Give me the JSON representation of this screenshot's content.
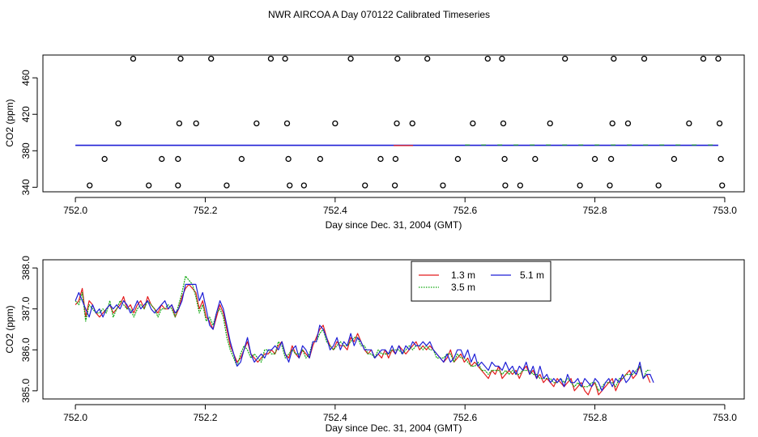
{
  "page_title": "NWR AIRCOA A  Day 070122  Calibrated Timeseries",
  "colors": {
    "red": "#e41a1c",
    "green": "#11a811",
    "blue": "#1f1fd6",
    "axis": "#000000"
  },
  "chart_data": [
    {
      "type": "scatter+line",
      "xlabel": "Day since Dec. 31, 2004 (GMT)",
      "ylabel": "CO2 (ppm)",
      "xlim": [
        751.95,
        753.03
      ],
      "ylim": [
        335,
        485
      ],
      "xticks": [
        752.0,
        752.2,
        752.4,
        752.6,
        752.8,
        753.0
      ],
      "xtick_labels": [
        "752.0",
        "752.2",
        "752.4",
        "752.6",
        "752.8",
        "753.0"
      ],
      "yticks": [
        340,
        380,
        420,
        460
      ],
      "ytick_labels": [
        "340",
        "380",
        "420",
        "460"
      ],
      "line": {
        "x_start": 752.0,
        "x_end": 752.99,
        "y": 386
      },
      "points": [
        {
          "x": 752.022,
          "y": 342
        },
        {
          "x": 752.045,
          "y": 371
        },
        {
          "x": 752.066,
          "y": 410
        },
        {
          "x": 752.089,
          "y": 481
        },
        {
          "x": 752.113,
          "y": 342
        },
        {
          "x": 752.133,
          "y": 371
        },
        {
          "x": 752.158,
          "y": 342
        },
        {
          "x": 752.158,
          "y": 371
        },
        {
          "x": 752.16,
          "y": 410
        },
        {
          "x": 752.162,
          "y": 481
        },
        {
          "x": 752.186,
          "y": 410
        },
        {
          "x": 752.209,
          "y": 481
        },
        {
          "x": 752.233,
          "y": 342
        },
        {
          "x": 752.256,
          "y": 371
        },
        {
          "x": 752.279,
          "y": 410
        },
        {
          "x": 752.301,
          "y": 481
        },
        {
          "x": 752.323,
          "y": 481
        },
        {
          "x": 752.326,
          "y": 410
        },
        {
          "x": 752.328,
          "y": 371
        },
        {
          "x": 752.33,
          "y": 342
        },
        {
          "x": 752.352,
          "y": 342
        },
        {
          "x": 752.377,
          "y": 371
        },
        {
          "x": 752.4,
          "y": 410
        },
        {
          "x": 752.424,
          "y": 481
        },
        {
          "x": 752.446,
          "y": 342
        },
        {
          "x": 752.47,
          "y": 371
        },
        {
          "x": 752.492,
          "y": 342
        },
        {
          "x": 752.493,
          "y": 371
        },
        {
          "x": 752.495,
          "y": 410
        },
        {
          "x": 752.496,
          "y": 481
        },
        {
          "x": 752.519,
          "y": 410
        },
        {
          "x": 752.542,
          "y": 481
        },
        {
          "x": 752.566,
          "y": 342
        },
        {
          "x": 752.589,
          "y": 371
        },
        {
          "x": 752.612,
          "y": 410
        },
        {
          "x": 752.635,
          "y": 481
        },
        {
          "x": 752.657,
          "y": 481
        },
        {
          "x": 752.659,
          "y": 410
        },
        {
          "x": 752.661,
          "y": 371
        },
        {
          "x": 752.662,
          "y": 342
        },
        {
          "x": 752.685,
          "y": 342
        },
        {
          "x": 752.708,
          "y": 371
        },
        {
          "x": 752.731,
          "y": 410
        },
        {
          "x": 752.754,
          "y": 481
        },
        {
          "x": 752.777,
          "y": 342
        },
        {
          "x": 752.8,
          "y": 371
        },
        {
          "x": 752.823,
          "y": 342
        },
        {
          "x": 752.825,
          "y": 371
        },
        {
          "x": 752.827,
          "y": 410
        },
        {
          "x": 752.829,
          "y": 481
        },
        {
          "x": 752.851,
          "y": 410
        },
        {
          "x": 752.876,
          "y": 481
        },
        {
          "x": 752.898,
          "y": 342
        },
        {
          "x": 752.922,
          "y": 371
        },
        {
          "x": 752.945,
          "y": 410
        },
        {
          "x": 752.967,
          "y": 481
        },
        {
          "x": 752.99,
          "y": 481
        },
        {
          "x": 752.992,
          "y": 410
        },
        {
          "x": 752.994,
          "y": 371
        },
        {
          "x": 752.996,
          "y": 342
        }
      ]
    },
    {
      "type": "line",
      "xlabel": "Day since Dec. 31, 2004 (GMT)",
      "ylabel": "CO2 (ppm)",
      "xlim": [
        751.95,
        753.03
      ],
      "ylim": [
        384.8,
        388.2
      ],
      "xticks": [
        752.0,
        752.2,
        752.4,
        752.6,
        752.8,
        753.0
      ],
      "xtick_labels": [
        "752.0",
        "752.2",
        "752.4",
        "752.6",
        "752.8",
        "753.0"
      ],
      "yticks": [
        385.0,
        386.0,
        387.0,
        388.0
      ],
      "ytick_labels": [
        "385.0",
        "386.0",
        "387.0",
        "388.0"
      ],
      "legend": [
        "1.3 m",
        "3.5 m",
        "5.1 m"
      ],
      "legend_position": "top-right",
      "x_start": 752.0,
      "x_step": 0.0053,
      "series": [
        {
          "name": "1.3 m",
          "color": "#e41a1c",
          "values": [
            387.1,
            387.2,
            387.5,
            386.8,
            387.2,
            387.1,
            386.9,
            386.8,
            386.9,
            387.0,
            387.1,
            386.9,
            387.0,
            387.1,
            387.3,
            387.0,
            387.1,
            386.9,
            387.1,
            387.2,
            387.0,
            387.3,
            387.1,
            387.0,
            386.9,
            387.1,
            387.0,
            387.0,
            387.1,
            386.8,
            387.0,
            387.3,
            387.5,
            387.6,
            387.5,
            387.4,
            387.0,
            387.2,
            386.8,
            386.7,
            386.5,
            386.8,
            387.1,
            386.9,
            386.5,
            386.1,
            385.9,
            385.7,
            385.8,
            386.0,
            386.2,
            385.9,
            385.8,
            385.7,
            385.8,
            385.9,
            385.9,
            386.0,
            385.9,
            386.1,
            386.2,
            385.9,
            385.8,
            386.1,
            385.9,
            385.8,
            386.0,
            385.9,
            385.8,
            386.1,
            386.3,
            386.5,
            386.6,
            386.3,
            386.1,
            386.0,
            386.2,
            386.1,
            386.1,
            386.0,
            386.3,
            386.2,
            386.4,
            386.2,
            386.0,
            385.9,
            386.0,
            385.8,
            385.9,
            385.8,
            386.0,
            385.8,
            386.0,
            385.9,
            386.1,
            386.0,
            385.9,
            386.0,
            386.1,
            386.2,
            386.0,
            386.1,
            386.0,
            386.1,
            386.0,
            385.9,
            385.8,
            385.7,
            385.8,
            386.0,
            385.7,
            385.8,
            385.9,
            385.7,
            385.8,
            385.6,
            385.7,
            385.6,
            385.5,
            385.4,
            385.3,
            385.5,
            385.4,
            385.6,
            385.3,
            385.4,
            385.5,
            385.4,
            385.5,
            385.3,
            385.5,
            385.6,
            385.4,
            385.5,
            385.3,
            385.4,
            385.2,
            385.3,
            385.2,
            385.1,
            385.3,
            385.2,
            385.1,
            385.2,
            385.3,
            385.0,
            385.1,
            385.2,
            385.0,
            384.9,
            385.1,
            385.2,
            384.9,
            385.0,
            385.1,
            385.2,
            385.3,
            385.0,
            385.2,
            385.3,
            385.4,
            385.5,
            385.3,
            385.4,
            385.6,
            385.3,
            385.4,
            385.2
          ]
        },
        {
          "name": "3.5 m",
          "color": "#11a811",
          "values": [
            387.2,
            387.1,
            387.4,
            386.7,
            387.1,
            387.0,
            386.9,
            386.9,
            387.0,
            386.9,
            387.2,
            386.8,
            387.0,
            387.2,
            387.1,
            387.0,
            387.0,
            386.8,
            387.0,
            387.1,
            387.0,
            387.2,
            387.1,
            387.0,
            386.8,
            387.0,
            387.0,
            387.1,
            387.0,
            386.8,
            387.1,
            387.4,
            387.8,
            387.7,
            387.6,
            387.3,
            386.9,
            387.1,
            386.7,
            386.8,
            386.6,
            386.9,
            387.0,
            386.8,
            386.3,
            386.0,
            385.8,
            385.6,
            385.9,
            386.1,
            386.0,
            385.8,
            385.9,
            385.8,
            385.7,
            386.0,
            386.0,
            385.9,
            385.9,
            386.2,
            386.1,
            385.8,
            385.9,
            386.0,
            385.9,
            385.9,
            386.0,
            385.8,
            385.9,
            386.2,
            386.2,
            386.4,
            386.5,
            386.2,
            386.1,
            386.0,
            386.1,
            386.2,
            386.1,
            386.1,
            386.2,
            386.3,
            386.3,
            386.1,
            386.1,
            385.9,
            385.9,
            385.8,
            386.0,
            385.9,
            385.9,
            385.9,
            386.0,
            386.0,
            386.0,
            385.9,
            386.0,
            386.1,
            386.0,
            386.1,
            386.1,
            386.0,
            386.1,
            386.0,
            386.0,
            385.8,
            385.8,
            385.8,
            385.9,
            385.9,
            385.7,
            385.9,
            385.8,
            385.8,
            385.7,
            385.6,
            385.6,
            385.7,
            385.5,
            385.5,
            385.4,
            385.5,
            385.5,
            385.5,
            385.4,
            385.5,
            385.4,
            385.5,
            385.4,
            385.4,
            385.5,
            385.5,
            385.5,
            385.4,
            385.4,
            385.3,
            385.3,
            385.3,
            385.3,
            385.2,
            385.2,
            385.3,
            385.2,
            385.3,
            385.2,
            385.1,
            385.2,
            385.1,
            385.1,
            385.1,
            385.2,
            385.2,
            385.0,
            385.1,
            385.2,
            385.2,
            385.2,
            385.1,
            385.3,
            385.3,
            385.4,
            385.4,
            385.4,
            385.5,
            385.6,
            385.3,
            385.5,
            385.5
          ]
        },
        {
          "name": "5.1 m",
          "color": "#1f1fd6",
          "values": [
            387.2,
            387.4,
            387.2,
            387.0,
            386.8,
            387.1,
            386.9,
            387.0,
            386.8,
            387.0,
            387.1,
            387.0,
            387.1,
            387.0,
            387.2,
            387.1,
            386.9,
            387.0,
            387.2,
            387.0,
            387.1,
            387.2,
            387.0,
            386.9,
            387.0,
            387.1,
            387.2,
            387.0,
            387.1,
            386.9,
            387.0,
            387.2,
            387.6,
            387.6,
            387.6,
            387.6,
            387.2,
            387.4,
            387.0,
            386.6,
            386.5,
            386.9,
            387.2,
            387.0,
            386.6,
            386.2,
            385.9,
            385.6,
            385.7,
            386.0,
            386.3,
            385.9,
            385.7,
            385.8,
            385.9,
            385.8,
            386.0,
            386.0,
            386.1,
            386.0,
            386.2,
            385.9,
            385.7,
            386.0,
            386.1,
            385.8,
            386.1,
            386.0,
            385.8,
            386.2,
            386.2,
            386.6,
            386.5,
            386.3,
            386.0,
            386.1,
            386.3,
            386.0,
            386.2,
            386.1,
            386.4,
            386.1,
            386.3,
            386.2,
            386.0,
            386.0,
            386.0,
            385.8,
            385.9,
            386.0,
            386.0,
            385.9,
            386.1,
            385.9,
            386.1,
            385.9,
            386.1,
            386.0,
            386.2,
            386.1,
            386.1,
            386.2,
            386.1,
            386.2,
            386.0,
            385.9,
            385.8,
            385.7,
            385.9,
            385.7,
            385.8,
            386.0,
            386.0,
            385.8,
            386.0,
            385.7,
            385.9,
            385.6,
            385.7,
            385.6,
            385.5,
            385.7,
            385.6,
            385.6,
            385.5,
            385.7,
            385.5,
            385.6,
            385.4,
            385.6,
            385.5,
            385.7,
            385.4,
            385.6,
            385.3,
            385.6,
            385.3,
            385.4,
            385.2,
            385.3,
            385.2,
            385.3,
            385.1,
            385.4,
            385.2,
            385.2,
            385.3,
            385.1,
            385.3,
            385.2,
            385.1,
            385.3,
            385.2,
            385.0,
            385.2,
            385.3,
            385.1,
            385.3,
            385.2,
            385.4,
            385.2,
            385.3,
            385.5,
            385.4,
            385.7,
            385.3,
            385.4,
            385.4,
            385.2
          ]
        }
      ]
    }
  ]
}
